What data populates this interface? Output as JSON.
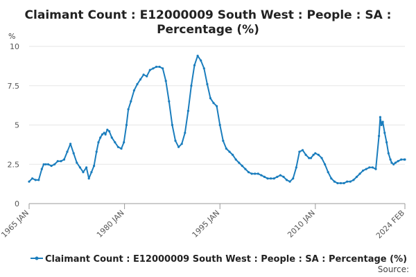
{
  "chart_data": {
    "type": "line",
    "title_line1": "Claimant Count : E12000009 South West : People : SA :",
    "title_line2": "Percentage (%)",
    "ylabel": "%",
    "ylim": [
      0,
      10
    ],
    "y_ticks": [
      0,
      2.5,
      5,
      7.5,
      10
    ],
    "y_tick_labels": [
      "0",
      "2.5",
      "5",
      "7.5",
      "10"
    ],
    "x_ticks": [
      1965.0,
      1980.0,
      1995.0,
      2010.0,
      2024.08
    ],
    "x_tick_labels": [
      "1965 JAN",
      "1980 JAN",
      "1995 JAN",
      "2010 JAN",
      "2024 FEB"
    ],
    "xlim": [
      1965.0,
      2024.08
    ],
    "legend_position": "bottom",
    "source_label": "Source:",
    "color": "#1a7dbd",
    "series": [
      {
        "name": "Claimant Count : E12000009 South West : People : SA : Percentage (%)",
        "x": [
          1965.0,
          1965.5,
          1966.0,
          1966.5,
          1967.0,
          1967.3,
          1967.6,
          1968.0,
          1968.5,
          1969.0,
          1969.5,
          1970.0,
          1970.5,
          1971.0,
          1971.5,
          1972.0,
          1972.5,
          1973.0,
          1973.5,
          1974.0,
          1974.4,
          1974.8,
          1975.2,
          1975.6,
          1975.9,
          1976.2,
          1976.5,
          1976.8,
          1977.0,
          1977.3,
          1977.6,
          1978.0,
          1978.5,
          1979.0,
          1979.5,
          1979.9,
          1980.3,
          1980.6,
          1981.0,
          1981.5,
          1982.0,
          1982.5,
          1983.0,
          1983.5,
          1984.0,
          1984.5,
          1985.0,
          1985.5,
          1986.0,
          1986.5,
          1987.0,
          1987.5,
          1988.0,
          1988.5,
          1989.0,
          1989.5,
          1990.0,
          1990.5,
          1991.0,
          1991.5,
          1992.0,
          1992.5,
          1993.0,
          1993.5,
          1994.0,
          1994.5,
          1995.0,
          1995.5,
          1996.0,
          1996.5,
          1997.0,
          1997.5,
          1998.0,
          1998.5,
          1999.0,
          1999.5,
          2000.0,
          2000.5,
          2001.0,
          2001.5,
          2002.0,
          2002.5,
          2003.0,
          2003.5,
          2004.0,
          2004.5,
          2005.0,
          2005.5,
          2006.0,
          2006.5,
          2007.0,
          2007.5,
          2008.0,
          2008.5,
          2009.0,
          2009.3,
          2009.7,
          2010.0,
          2010.5,
          2011.0,
          2011.5,
          2012.0,
          2012.5,
          2013.0,
          2013.5,
          2014.0,
          2014.5,
          2015.0,
          2015.5,
          2016.0,
          2016.5,
          2017.0,
          2017.5,
          2018.0,
          2018.5,
          2019.0,
          2019.5,
          2020.0,
          2020.2,
          2020.4,
          2020.6,
          2020.9,
          2021.2,
          2021.5,
          2021.8,
          2022.0,
          2022.3,
          2022.6,
          2023.0,
          2023.5,
          2024.0,
          2024.08
        ],
        "y": [
          1.4,
          1.6,
          1.5,
          1.5,
          2.2,
          2.5,
          2.5,
          2.5,
          2.4,
          2.5,
          2.7,
          2.7,
          2.8,
          3.3,
          3.8,
          3.2,
          2.6,
          2.3,
          2.0,
          2.3,
          1.6,
          2.0,
          2.4,
          3.3,
          3.9,
          4.2,
          4.4,
          4.5,
          4.4,
          4.7,
          4.6,
          4.2,
          3.9,
          3.6,
          3.5,
          3.9,
          5.0,
          6.0,
          6.5,
          7.2,
          7.6,
          7.9,
          8.2,
          8.1,
          8.5,
          8.6,
          8.7,
          8.7,
          8.6,
          7.8,
          6.5,
          5.0,
          4.0,
          3.6,
          3.8,
          4.5,
          5.9,
          7.5,
          8.8,
          9.4,
          9.1,
          8.6,
          7.6,
          6.7,
          6.4,
          6.2,
          5.0,
          4.0,
          3.5,
          3.3,
          3.1,
          2.8,
          2.6,
          2.4,
          2.2,
          2.0,
          1.9,
          1.9,
          1.9,
          1.8,
          1.7,
          1.6,
          1.6,
          1.6,
          1.7,
          1.8,
          1.7,
          1.5,
          1.4,
          1.6,
          2.3,
          3.3,
          3.4,
          3.1,
          2.9,
          2.9,
          3.1,
          3.2,
          3.1,
          2.9,
          2.5,
          2.0,
          1.6,
          1.4,
          1.3,
          1.3,
          1.3,
          1.4,
          1.4,
          1.5,
          1.7,
          1.9,
          2.1,
          2.2,
          2.3,
          2.3,
          2.2,
          4.3,
          5.5,
          5.0,
          5.2,
          4.5,
          3.9,
          3.2,
          2.8,
          2.6,
          2.5,
          2.6,
          2.7,
          2.8,
          2.8,
          2.8
        ]
      }
    ]
  }
}
